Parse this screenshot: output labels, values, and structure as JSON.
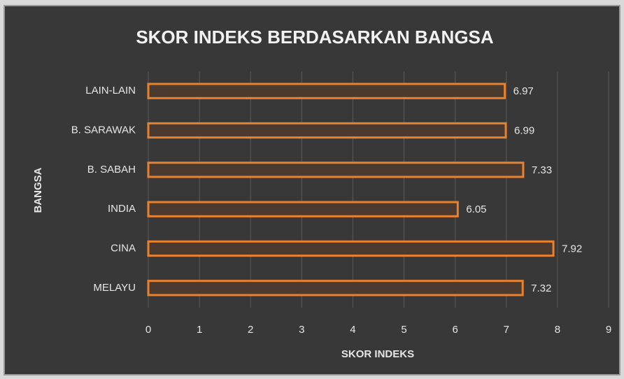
{
  "chart_data": {
    "type": "barh",
    "title": "SKOR INDEKS BERDASARKAN BANGSA",
    "x_label": "SKOR INDEKS",
    "y_label": "BANGSA",
    "categories": [
      "LAIN-LAIN",
      "B. SARAWAK",
      "B. SABAH",
      "INDIA",
      "CINA",
      "MELAYU"
    ],
    "values": [
      6.97,
      6.99,
      7.33,
      6.05,
      7.92,
      7.32
    ],
    "color": "#e8822e",
    "xlim": [
      0,
      9
    ],
    "xticks": [
      0,
      1,
      2,
      3,
      4,
      5,
      6,
      7,
      8,
      9
    ],
    "grid": true
  }
}
